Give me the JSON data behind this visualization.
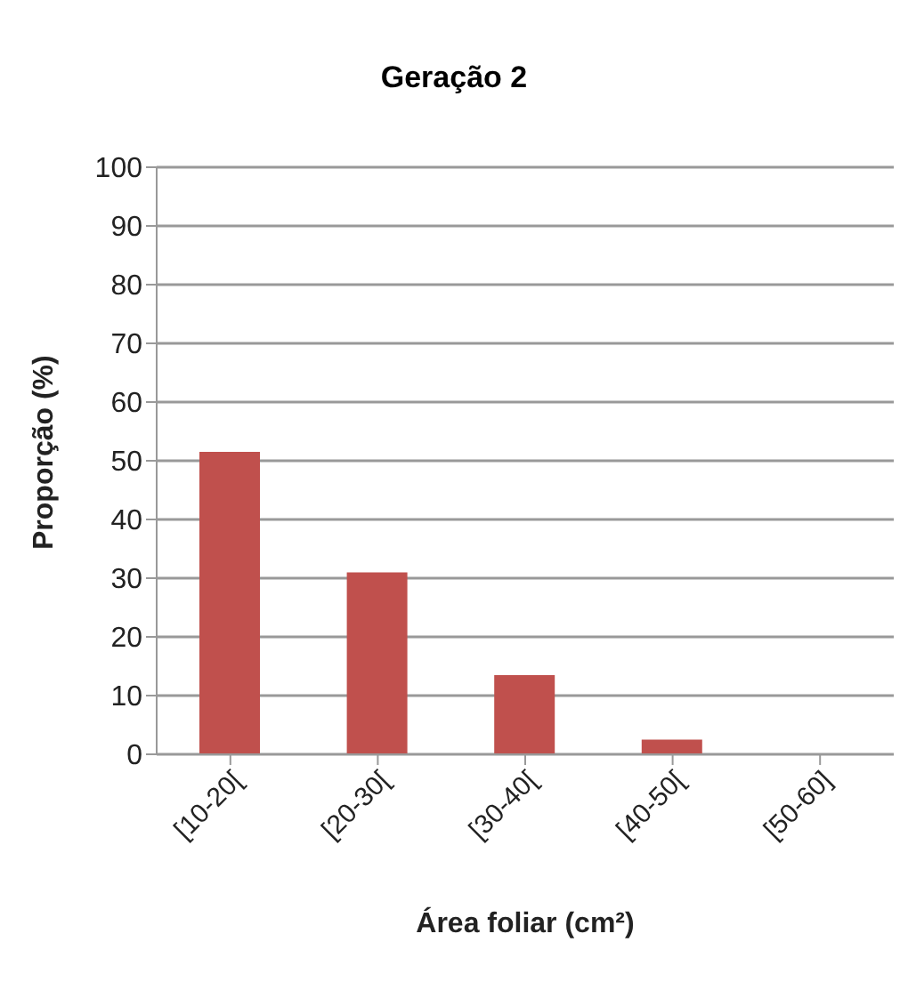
{
  "chart_data": {
    "type": "bar",
    "title": "Geração 2",
    "xlabel": "Área foliar (cm²)",
    "ylabel": "Proporção (%)",
    "categories": [
      "[10-20[",
      "[20-30[",
      "[30-40[",
      "[40-50[",
      "[50-60]"
    ],
    "values": [
      51.5,
      31,
      13.5,
      2.5,
      0
    ],
    "color": "#c0504d",
    "ylim": [
      0,
      100
    ],
    "yticks": [
      0,
      10,
      20,
      30,
      40,
      50,
      60,
      70,
      80,
      90,
      100
    ],
    "grid": "y"
  }
}
